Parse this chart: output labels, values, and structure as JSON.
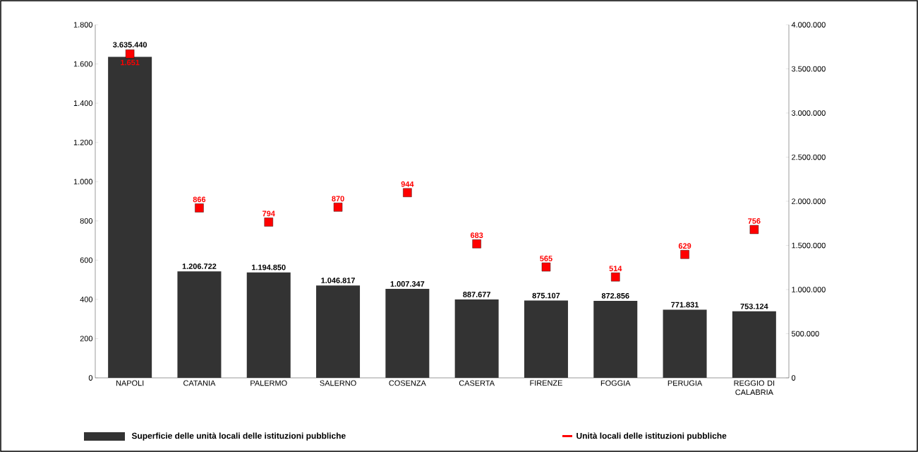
{
  "chart_data": {
    "type": "bar",
    "categories": [
      "NAPOLI",
      "CATANIA",
      "PALERMO",
      "SALERNO",
      "COSENZA",
      "CASERTA",
      "FIRENZE",
      "FOGGIA",
      "PERUGIA",
      "REGGIO DI CALABRIA"
    ],
    "series": [
      {
        "name": "Superficie delle unità locali delle istituzioni pubbliche",
        "type": "bar",
        "axis": "y2",
        "color": "#333333",
        "values": [
          3635440,
          1206722,
          1194850,
          1046817,
          1007347,
          887677,
          875107,
          872856,
          771831,
          753124
        ],
        "value_labels": [
          "3.635.440",
          "1.206.722",
          "1.194.850",
          "1.046.817",
          "1.007.347",
          "887.677",
          "875.107",
          "872.856",
          "771.831",
          "753.124"
        ]
      },
      {
        "name": "Unità locali delle istituzioni pubbliche",
        "type": "scatter",
        "color": "#ff0000",
        "values": [
          1651,
          866,
          794,
          870,
          944,
          683,
          565,
          514,
          629,
          756
        ],
        "value_labels": [
          "1.651",
          "866",
          "794",
          "870",
          "944",
          "683",
          "565",
          "514",
          "629",
          "756"
        ]
      }
    ],
    "ylim": [
      0,
      1800
    ],
    "yticks": [
      0,
      200,
      400,
      600,
      800,
      {
        "value": 1000,
        "label": "1.000"
      },
      {
        "value": 1200,
        "label": "1.200"
      },
      {
        "value": 1400,
        "label": "1.400"
      },
      {
        "value": 1600,
        "label": "1.600"
      },
      {
        "value": 1800,
        "label": "1.800"
      }
    ],
    "y2lim": [
      0,
      4000000
    ],
    "y2ticks": [
      0,
      {
        "value": 500000,
        "label": "500.000"
      },
      {
        "value": 1000000,
        "label": "1.000.000"
      },
      {
        "value": 1500000,
        "label": "1.500.000"
      },
      {
        "value": 2000000,
        "label": "2.000.000"
      },
      {
        "value": 2500000,
        "label": "2.500.000"
      },
      {
        "value": 3000000,
        "label": "3.000.000"
      },
      {
        "value": 3500000,
        "label": "3.500.000"
      },
      {
        "value": 4000000,
        "label": "4.000.000"
      }
    ],
    "marker": "square",
    "legend": "bottom"
  }
}
